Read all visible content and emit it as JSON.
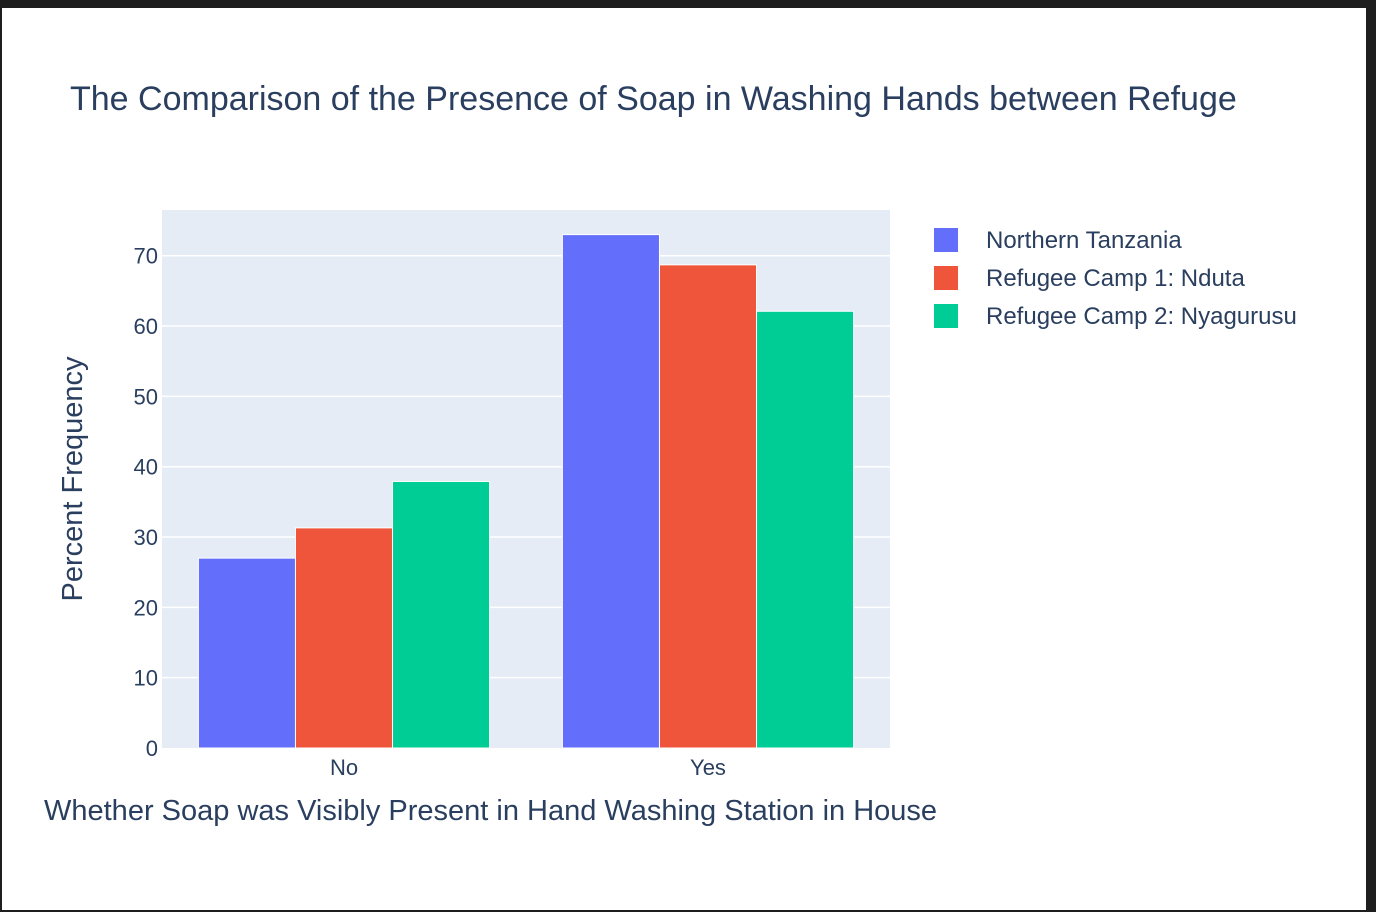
{
  "chart_data": {
    "type": "bar",
    "title": "The Comparison of the Presence of Soap in Washing Hands between Refuge",
    "xlabel": "Whether Soap was Visibly Present in Hand Washing Station in House",
    "ylabel": "Percent Frequency",
    "categories": [
      "No",
      "Yes"
    ],
    "ylim": [
      0,
      76.5
    ],
    "yticks": [
      0,
      10,
      20,
      30,
      40,
      50,
      60,
      70
    ],
    "grid": true,
    "legend_position": "top-right",
    "series": [
      {
        "name": "Northern Tanzania",
        "color": "#636efa",
        "values": [
          27,
          73
        ]
      },
      {
        "name": "Refugee Camp 1: Nduta",
        "color": "#ef553b",
        "values": [
          31.3,
          68.7
        ]
      },
      {
        "name": "Refugee Camp 2: Nyagurusu",
        "color": "#00cc96",
        "values": [
          37.9,
          62.1
        ]
      }
    ]
  }
}
